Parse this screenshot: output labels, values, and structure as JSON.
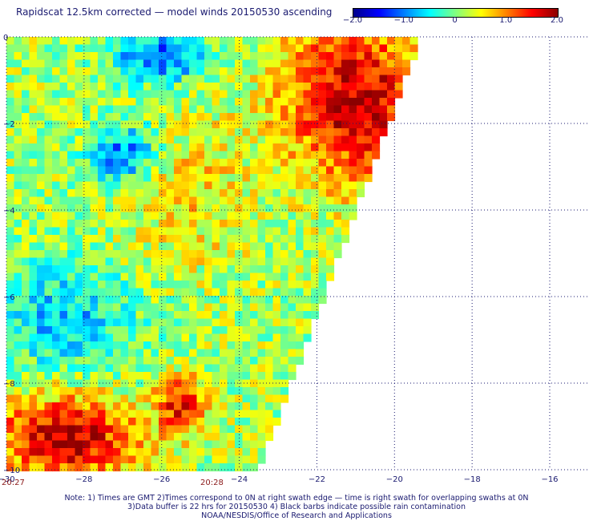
{
  "title": "Rapidscat 12.5km corrected — model winds 20150530 ascending",
  "colorbar": {
    "tick_labels": [
      "−2.0",
      "−1.0",
      "0",
      "1.0",
      "2.0"
    ],
    "tick_values": [
      -2.0,
      -1.0,
      0,
      1.0,
      2.0
    ],
    "range": [
      -2.0,
      2.0
    ],
    "colors": [
      "#00008b",
      "#0000ff",
      "#0080ff",
      "#00ffff",
      "#80ff80",
      "#ffff00",
      "#ff8000",
      "#ff0000",
      "#8b0000"
    ]
  },
  "time_labels": {
    "left": "20:27",
    "middle": "20:28"
  },
  "notes": [
    "Note: 1) Times are GMT 2)Times correspond to 0N at right swath edge — time is right swath for overlapping swaths at 0N",
    "3)Data buffer is 22 hrs for 20150530 4) Black barbs indicate possible rain contamination",
    "NOAA/NESDIS/Office of Research and Applications"
  ],
  "chart_data": {
    "type": "heatmap",
    "title": "Rapidscat 12.5km corrected — model winds 20150530 ascending",
    "xlabel": "",
    "ylabel": "",
    "xlim": [
      -30,
      -15.3
    ],
    "ylim": [
      -10,
      0
    ],
    "x_ticks": [
      -30,
      -28,
      -26,
      -24,
      -22,
      -20,
      -18,
      -16
    ],
    "x_tick_labels": [
      "−30",
      "−28",
      "−26",
      "−24",
      "−22",
      "−20",
      "−18",
      "−16"
    ],
    "y_ticks": [
      -10,
      -8,
      -6,
      -4,
      -2,
      0
    ],
    "y_tick_labels": [
      "−10",
      "−8",
      "−6",
      "−4",
      "−2",
      "0"
    ],
    "grid": true,
    "value_range": [
      -2.0,
      2.0
    ],
    "swath_right_edge": [
      [
        -19.4,
        0
      ],
      [
        -23.6,
        -10
      ]
    ],
    "description_regions": [
      {
        "area": "northeast swath edge",
        "x": [
          -22.5,
          -19.5
        ],
        "y": [
          -3,
          0
        ],
        "value": 1.8
      },
      {
        "area": "upper center",
        "x": [
          -27,
          -25
        ],
        "y": [
          -1,
          0
        ],
        "value": -1.2
      },
      {
        "area": "center-left",
        "x": [
          -27.5,
          -26
        ],
        "y": [
          -3.3,
          -2.2
        ],
        "value": -1.6
      },
      {
        "area": "west",
        "x": [
          -30,
          -27
        ],
        "y": [
          -7.5,
          -5.5
        ],
        "value": -0.7
      },
      {
        "area": "southwest corner",
        "x": [
          -30,
          -27
        ],
        "y": [
          -10,
          -8.5
        ],
        "value": 1.8
      },
      {
        "area": "south center",
        "x": [
          -26,
          -25
        ],
        "y": [
          -9,
          -8
        ],
        "value": 1.6
      },
      {
        "area": "middle band",
        "x": [
          -26.5,
          -24
        ],
        "y": [
          -5,
          -2
        ],
        "value": 0.6
      }
    ]
  }
}
